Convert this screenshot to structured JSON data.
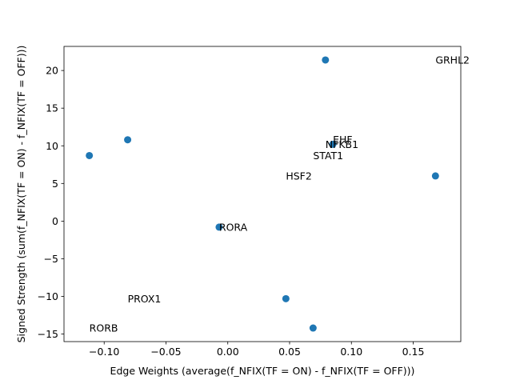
{
  "chart_data": {
    "type": "scatter",
    "title": "",
    "xlabel": "Edge Weights (average(f_NFIX(TF = ON) - f_NFIX(TF = OFF)))",
    "ylabel": "Signed Strength (sum(f_NFIX(TF = ON) - f_NFIX(TF = OFF)))",
    "xlim": [
      -0.1325,
      0.1885
    ],
    "ylim": [
      -16.0,
      23.2
    ],
    "xticks": [
      -0.1,
      -0.05,
      0.0,
      0.05,
      0.1,
      0.15
    ],
    "xtick_labels": [
      "−0.10",
      "−0.05",
      "0.00",
      "0.05",
      "0.10",
      "0.15"
    ],
    "yticks": [
      -15,
      -10,
      -5,
      0,
      5,
      10,
      15,
      20
    ],
    "ytick_labels": [
      "−15",
      "−10",
      "−5",
      "0",
      "5",
      "10",
      "15",
      "20"
    ],
    "grid": false,
    "marker_color": "#1f77b4",
    "points": [
      {
        "x": -0.112,
        "y": 8.7
      },
      {
        "x": -0.081,
        "y": 10.8
      },
      {
        "x": -0.007,
        "y": -0.8
      },
      {
        "x": 0.047,
        "y": -10.3
      },
      {
        "x": 0.069,
        "y": -14.2
      },
      {
        "x": 0.079,
        "y": 21.4
      },
      {
        "x": 0.085,
        "y": 10.2
      },
      {
        "x": 0.168,
        "y": 6.0
      }
    ],
    "annotations": [
      {
        "text": "GRHL2",
        "x": 0.168,
        "y": 21.4
      },
      {
        "text": "EHF",
        "x": 0.085,
        "y": 10.8
      },
      {
        "text": "NFKB1",
        "x": 0.079,
        "y": 10.2
      },
      {
        "text": "STAT1",
        "x": 0.069,
        "y": 8.7
      },
      {
        "text": "HSF2",
        "x": 0.047,
        "y": 6.0
      },
      {
        "text": "RORA",
        "x": -0.007,
        "y": -0.8
      },
      {
        "text": "PROX1",
        "x": -0.081,
        "y": -10.3
      },
      {
        "text": "RORB",
        "x": -0.112,
        "y": -14.2
      }
    ]
  }
}
